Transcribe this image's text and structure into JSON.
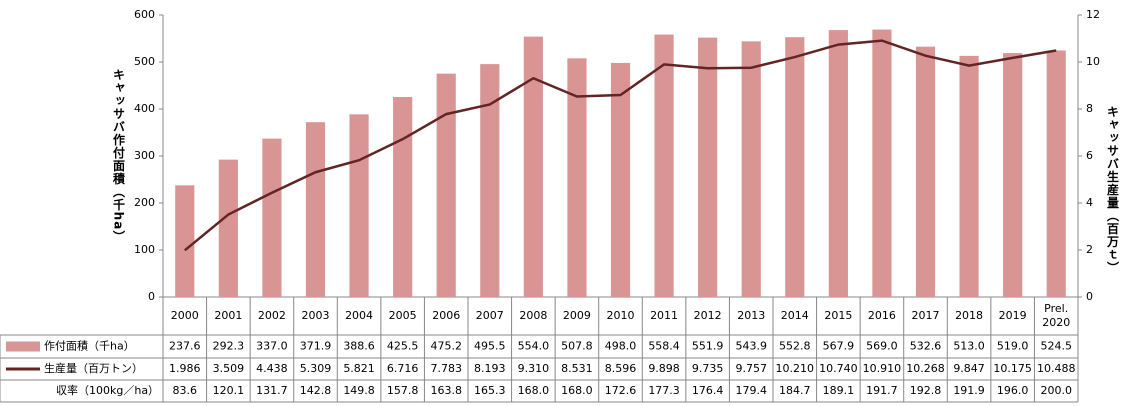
{
  "chart_data": {
    "type": "bar_line_table",
    "categories": [
      "2000",
      "2001",
      "2002",
      "2003",
      "2004",
      "2005",
      "2006",
      "2007",
      "2008",
      "2009",
      "2010",
      "2011",
      "2012",
      "2013",
      "2014",
      "2015",
      "2016",
      "2017",
      "2018",
      "2019",
      "Prel. 2020"
    ],
    "series": [
      {
        "name": "作付面積（千ha）",
        "type": "bar",
        "color": "#d99594",
        "axis": "y",
        "values": [
          237.6,
          292.3,
          337.0,
          371.9,
          388.6,
          425.5,
          475.2,
          495.5,
          554.0,
          507.8,
          498.0,
          558.4,
          551.9,
          543.9,
          552.8,
          567.9,
          569.0,
          532.6,
          513.0,
          519.0,
          524.5
        ],
        "value_labels": [
          "237.6",
          "292.3",
          "337.0",
          "371.9",
          "388.6",
          "425.5",
          "475.2",
          "495.5",
          "554.0",
          "507.8",
          "498.0",
          "558.4",
          "551.9",
          "543.9",
          "552.8",
          "567.9",
          "569.0",
          "532.6",
          "513.0",
          "519.0",
          "524.5"
        ]
      },
      {
        "name": "生産量（百万トン）",
        "type": "line",
        "color": "#632523",
        "axis": "y2",
        "values": [
          1.986,
          3.509,
          4.438,
          5.309,
          5.821,
          6.716,
          7.783,
          8.193,
          9.31,
          8.531,
          8.596,
          9.898,
          9.735,
          9.757,
          10.21,
          10.74,
          10.91,
          10.268,
          9.847,
          10.175,
          10.488
        ],
        "value_labels": [
          "1.986",
          "3.509",
          "4.438",
          "5.309",
          "5.821",
          "6.716",
          "7.783",
          "8.193",
          "9.310",
          "8.531",
          "8.596",
          "9.898",
          "9.735",
          "9.757",
          "10.210",
          "10.740",
          "10.910",
          "10.268",
          "9.847",
          "10.175",
          "10.488"
        ]
      },
      {
        "name": "収率（100kg／ha）",
        "type": "table",
        "values": [
          "83.6",
          "120.1",
          "131.7",
          "142.8",
          "149.8",
          "157.8",
          "163.8",
          "165.3",
          "168.0",
          "168.0",
          "172.6",
          "177.3",
          "176.4",
          "179.4",
          "184.7",
          "189.1",
          "191.7",
          "192.8",
          "191.9",
          "196.0",
          "200.0"
        ]
      }
    ],
    "y_label": "キャッサバ作付面積（千ha）",
    "y2_label": "キャッサバ生産量（百万ｔ）",
    "ylim": [
      0,
      600
    ],
    "yticks": [
      0,
      100,
      200,
      300,
      400,
      500,
      600
    ],
    "y2lim": [
      0,
      12
    ],
    "y2ticks": [
      0,
      2,
      4,
      6,
      8,
      10,
      12
    ]
  }
}
